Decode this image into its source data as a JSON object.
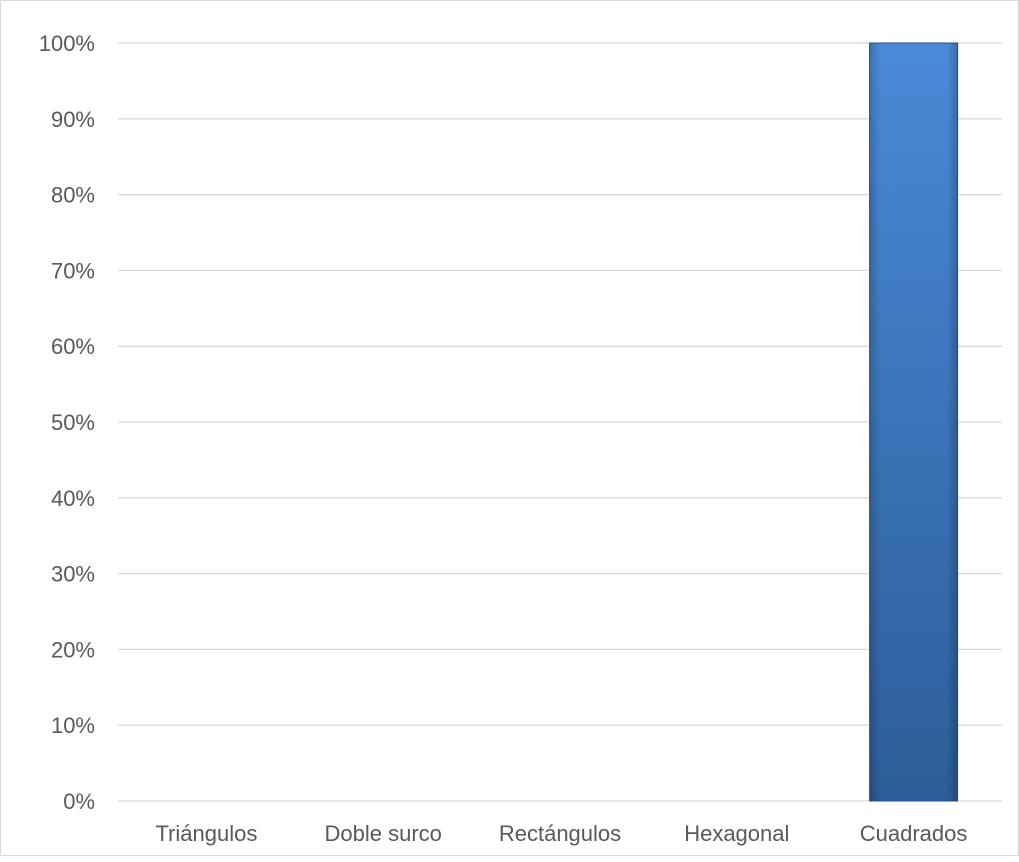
{
  "chart_data": {
    "type": "bar",
    "categories": [
      "Triángulos",
      "Doble surco",
      "Rectángulos",
      "Hexagonal",
      "Cuadrados"
    ],
    "values": [
      0,
      0,
      0,
      0,
      100
    ],
    "yticks": [
      "0%",
      "10%",
      "20%",
      "30%",
      "40%",
      "50%",
      "60%",
      "70%",
      "80%",
      "90%",
      "100%"
    ],
    "ylim": [
      0,
      100
    ],
    "y_unit": "%",
    "grid": true,
    "legend": "none",
    "colors": {
      "bar_light": "#4a8ad8",
      "bar_dark": "#2c5d98",
      "gridline": "#d9d9d9",
      "axis_text": "#595959"
    }
  }
}
